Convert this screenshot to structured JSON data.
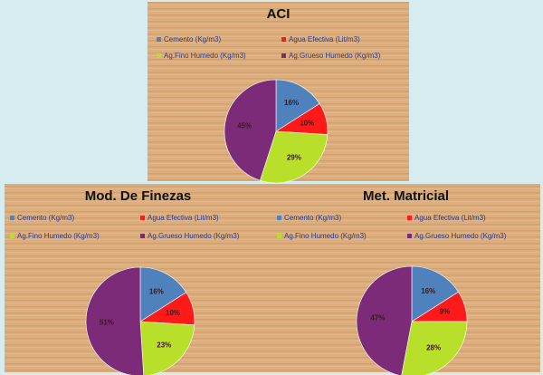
{
  "chart_data": [
    {
      "type": "pie",
      "title": "ACI",
      "categories": [
        "Cemento (Kg/m3)",
        "Agua Efectiva (Lit/m3)",
        "Ag.Fino Humedo (Kg/m3)",
        "Ag.Grueso Humedo (Kg/m3)"
      ],
      "values": [
        16,
        10,
        29,
        45
      ],
      "value_labels": [
        "16%",
        "10%",
        "29%",
        "45%"
      ],
      "colors": [
        "#4f81bd",
        "#ff1a1a",
        "#b8e02a",
        "#7b2b78"
      ]
    },
    {
      "type": "pie",
      "title": "Mod. De Finezas",
      "categories": [
        "Cemento (Kg/m3)",
        "Agua Efectiva (Lit/m3)",
        "Ag.Fino Humedo (Kg/m3)",
        "Ag.Grueso Humedo (Kg/m3)"
      ],
      "values": [
        16,
        10,
        23,
        51
      ],
      "value_labels": [
        "16%",
        "10%",
        "23%",
        "51%"
      ],
      "colors": [
        "#4f81bd",
        "#ff1a1a",
        "#b8e02a",
        "#7b2b78"
      ]
    },
    {
      "type": "pie",
      "title": "Met. Matricial",
      "categories": [
        "Cemento (Kg/m3)",
        "Agua Efectiva (Lit/m3)",
        "Ag.Fino Humedo (Kg/m3)",
        "Ag.Grueso Humedo (Kg/m3)"
      ],
      "values": [
        16,
        9,
        28,
        47
      ],
      "value_labels": [
        "16%",
        "9%",
        "28%",
        "47%"
      ],
      "colors": [
        "#4f81bd",
        "#ff1a1a",
        "#b8e02a",
        "#7b2b78"
      ]
    }
  ]
}
